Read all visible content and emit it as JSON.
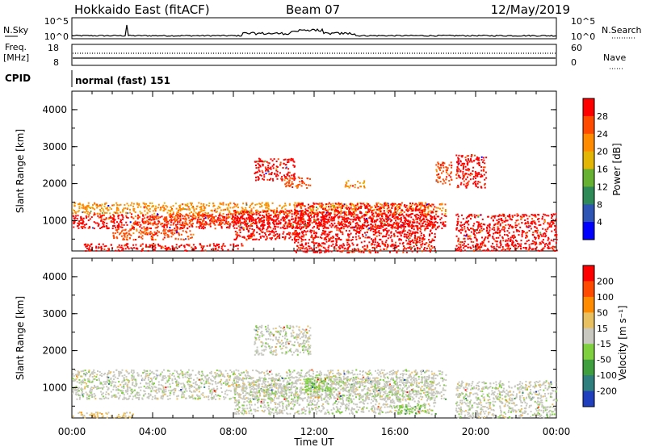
{
  "header": {
    "station": "Hokkaido East (fitACF)",
    "beam": "Beam 07",
    "date": "12/May/2019"
  },
  "status_panel": {
    "nsky_label": "N.Sky",
    "nsky_ticks": [
      "10^5",
      "10^0"
    ],
    "nsearch_label": "N.Search",
    "nsearch_ticks": [
      "10^5",
      "10^0"
    ],
    "freq_label_1": "Freq.",
    "freq_label_2": "[MHz]",
    "freq_ticks": [
      "18",
      "8"
    ],
    "nave_label": "Nave",
    "nave_ticks": [
      "60",
      "0"
    ],
    "cpid_label": "CPID",
    "cpid_value": "normal (fast) 151"
  },
  "chart_data": [
    {
      "type": "heatmap",
      "name": "power",
      "ylabel": "Slant Range [km]",
      "yticks": [
        1000,
        2000,
        3000,
        4000
      ],
      "ylim": [
        180,
        4500
      ],
      "xlim": [
        0,
        24
      ],
      "xticks": [
        "00:00",
        "04:00",
        "08:00",
        "12:00",
        "16:00",
        "20:00",
        "00:00"
      ],
      "xlabel": "Time UT",
      "colorbar_label": "Power [dB]",
      "colorbar_ticks": [
        "4",
        "8",
        "12",
        "16",
        "20",
        "24",
        "28"
      ],
      "colorbar_colors": [
        "#0000ff",
        "#2f55b4",
        "#2e8b57",
        "#66b032",
        "#e3b505",
        "#ff8c00",
        "#ff4a00",
        "#ff0000"
      ],
      "regions": [
        {
          "t0": 0.0,
          "t1": 18.5,
          "r0": 800,
          "r1": 1200,
          "level": 7
        },
        {
          "t0": 0.0,
          "t1": 18.5,
          "r0": 1200,
          "r1": 1500,
          "level": 5
        },
        {
          "t0": 3.0,
          "t1": 8.0,
          "r0": 900,
          "r1": 1200,
          "level": 6
        },
        {
          "t0": 8.0,
          "t1": 11.5,
          "r0": 500,
          "r1": 1300,
          "level": 7
        },
        {
          "t0": 11.0,
          "t1": 18.0,
          "r0": 150,
          "r1": 1500,
          "level": 7
        },
        {
          "t0": 0.5,
          "t1": 8.5,
          "r0": 200,
          "r1": 400,
          "level": 7
        },
        {
          "t0": 2.0,
          "t1": 6.0,
          "r0": 500,
          "r1": 800,
          "level": 6
        },
        {
          "t0": 9.0,
          "t1": 11.0,
          "r0": 2100,
          "r1": 2700,
          "level": 7
        },
        {
          "t0": 10.5,
          "t1": 11.8,
          "r0": 1900,
          "r1": 2200,
          "level": 6
        },
        {
          "t0": 13.5,
          "t1": 14.5,
          "r0": 1900,
          "r1": 2100,
          "level": 5
        },
        {
          "t0": 18.0,
          "t1": 18.8,
          "r0": 2000,
          "r1": 2600,
          "level": 6
        },
        {
          "t0": 19.0,
          "t1": 20.5,
          "r0": 1900,
          "r1": 2800,
          "level": 7
        },
        {
          "t0": 19.0,
          "t1": 24.0,
          "r0": 200,
          "r1": 1200,
          "level": 7
        }
      ]
    },
    {
      "type": "heatmap",
      "name": "velocity",
      "ylabel": "Slant Range [km]",
      "yticks": [
        1000,
        2000,
        3000,
        4000
      ],
      "ylim": [
        180,
        4500
      ],
      "xlim": [
        0,
        24
      ],
      "xticks": [
        "00:00",
        "04:00",
        "08:00",
        "12:00",
        "16:00",
        "20:00",
        "00:00"
      ],
      "xlabel": "Time UT",
      "colorbar_label": "Velocity [m s⁻¹]",
      "colorbar_ticks": [
        "200",
        "100",
        "50",
        "15",
        "-15",
        "-50",
        "-100",
        "-200"
      ],
      "colorbar_colors": [
        "#1f3fbf",
        "#2f7f7f",
        "#3f9f3f",
        "#7fd03f",
        "#c8c8c0",
        "#e8c060",
        "#ff8c00",
        "#ff4a00",
        "#ff0000"
      ],
      "regions": [
        {
          "t0": 0.0,
          "t1": 18.5,
          "r0": 700,
          "r1": 1500,
          "level": 4
        },
        {
          "t0": 8.0,
          "t1": 18.0,
          "r0": 300,
          "r1": 1300,
          "level": 4
        },
        {
          "t0": 9.0,
          "t1": 11.8,
          "r0": 1900,
          "r1": 2700,
          "level": 4
        },
        {
          "t0": 19.0,
          "t1": 24.0,
          "r0": 200,
          "r1": 1200,
          "level": 4
        },
        {
          "t0": 0.0,
          "t1": 3.0,
          "r0": 200,
          "r1": 350,
          "level": 5
        },
        {
          "t0": 11.5,
          "t1": 12.8,
          "r0": 900,
          "r1": 1300,
          "level": 3
        },
        {
          "t0": 16.0,
          "t1": 17.5,
          "r0": 300,
          "r1": 550,
          "level": 3
        }
      ]
    }
  ]
}
